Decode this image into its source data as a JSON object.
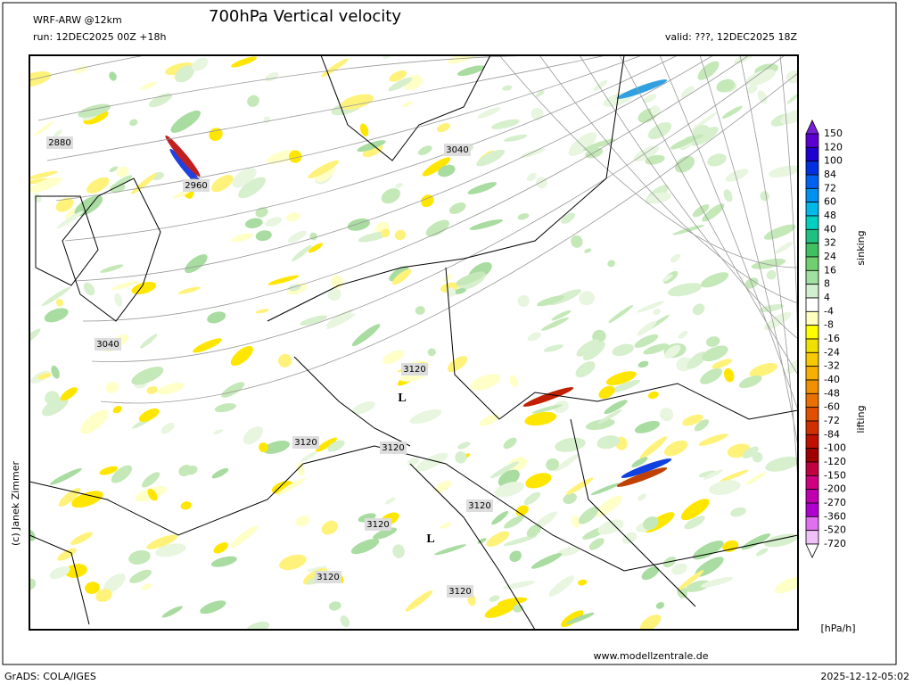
{
  "header": {
    "model": "WRF-ARW @12km",
    "title": "700hPa Vertical velocity",
    "run": "run: 12DEC2025 00Z +18h",
    "valid": "valid: ???, 12DEC2025 18Z"
  },
  "map": {
    "labels": [
      "2880",
      "2960",
      "3040",
      "3040",
      "3120",
      "3120",
      "3120",
      "3120",
      "3120",
      "3120",
      "3120",
      "L",
      "L"
    ]
  },
  "colorbar": {
    "levels": [
      150,
      120,
      100,
      84,
      72,
      60,
      48,
      40,
      32,
      24,
      16,
      8,
      4,
      -4,
      -8,
      -16,
      -24,
      -32,
      -40,
      -48,
      -60,
      -72,
      -84,
      -100,
      -120,
      -150,
      -200,
      -270,
      -360,
      -520,
      -720
    ],
    "colors": [
      "#7a1fd8",
      "#5a00d0",
      "#2000d0",
      "#0030e0",
      "#0060f0",
      "#0090f0",
      "#00b8e8",
      "#00d0c0",
      "#20c080",
      "#40c060",
      "#70d070",
      "#a0e0a0",
      "#d0f0d0",
      "#ffffff",
      "#ffffc0",
      "#ffff00",
      "#f0e000",
      "#f8c800",
      "#f8b000",
      "#f09000",
      "#e87000",
      "#e05000",
      "#d03000",
      "#c01000",
      "#a00000",
      "#c00040",
      "#d00080",
      "#c000b0",
      "#b000d0",
      "#e070f0",
      "#f0c0f8",
      "#ffffff"
    ],
    "upper_label": "sinking",
    "lower_label": "lifting",
    "unit": "[hPa/h]"
  },
  "footer": {
    "credit": "(c) Janek Zimmer",
    "website": "www.modellzentrale.de",
    "software": "GrADS: COLA/IGES",
    "timestamp": "2025-12-12-05:02"
  }
}
